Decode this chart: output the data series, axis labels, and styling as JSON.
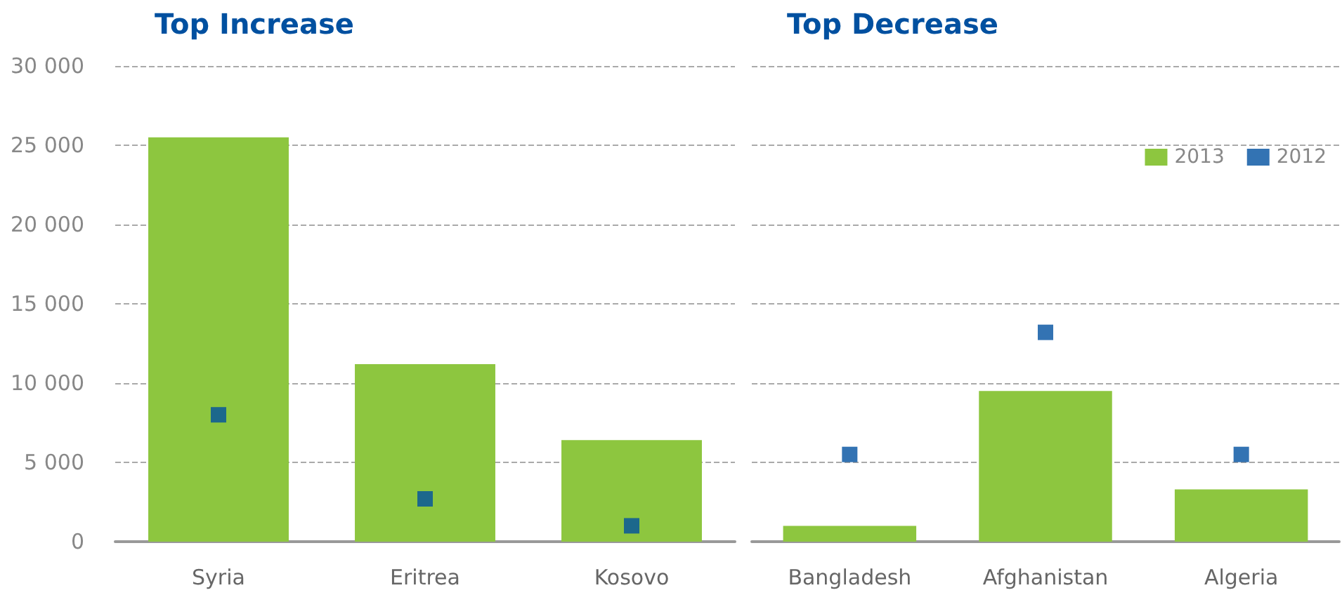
{
  "chart_data": [
    {
      "type": "bar",
      "title": "Top Increase",
      "categories": [
        "Syria",
        "Eritrea",
        "Kosovo"
      ],
      "series": [
        {
          "color": "#8dc63f",
          "values": [
            25500,
            11200,
            6400
          ]
        },
        {
          "type": "scatter",
          "color": "#0050a0",
          "marker": "square",
          "values": [
            8000,
            2700,
            1000
          ]
        }
      ],
      "ylim": [
        0,
        30000
      ],
      "yticks": [
        {
          "value": 0,
          "label": "0"
        },
        {
          "value": 5000,
          "label": "5 000"
        },
        {
          "value": 10000,
          "label": "10 000"
        },
        {
          "value": 15000,
          "label": "15 000"
        },
        {
          "value": 20000,
          "label": "20 000"
        },
        {
          "value": 25000,
          "label": "25 000"
        },
        {
          "value": 30000,
          "label": "30 000"
        }
      ],
      "grid": "y",
      "legend": false
    },
    {
      "type": "bar",
      "title": "Top Decrease",
      "categories": [
        "Bangladesh",
        "Afghanistan",
        "Algeria"
      ],
      "series": [
        {
          "name": "2013",
          "color": "#8dc63f",
          "values": [
            1000,
            9500,
            3300
          ]
        },
        {
          "name": "2012",
          "type": "scatter",
          "color": "#0050a0",
          "marker": "square",
          "values": [
            5500,
            13200,
            5500
          ]
        }
      ],
      "ylim": [
        0,
        30000
      ],
      "yticks": [
        0,
        5000,
        10000,
        15000,
        20000,
        25000,
        30000
      ],
      "grid": "y",
      "legend": "top right",
      "tick_labels": "x"
    }
  ]
}
